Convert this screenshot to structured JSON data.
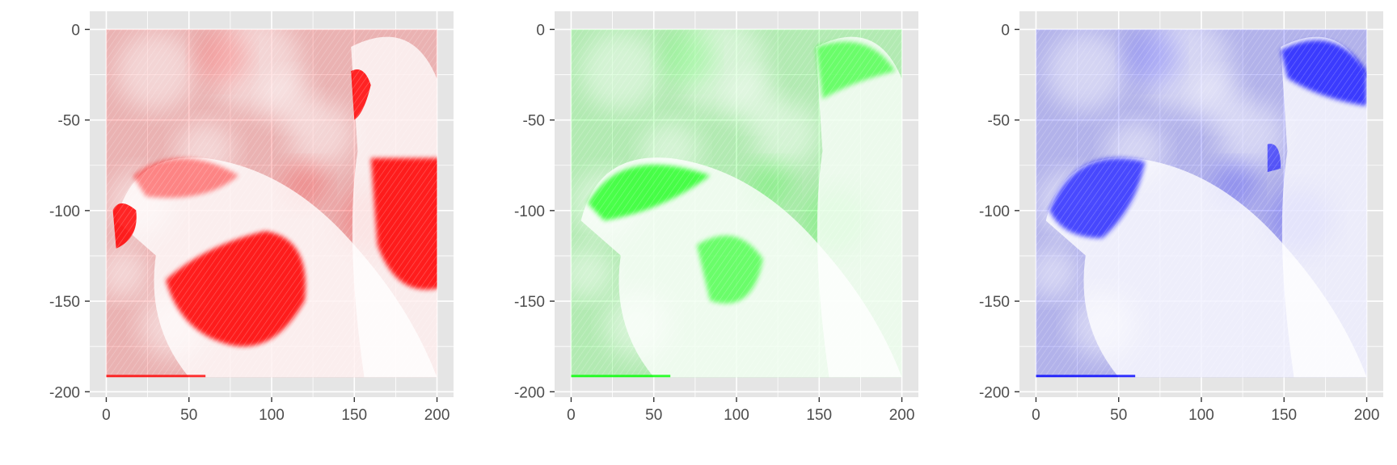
{
  "chart_data": [
    {
      "type": "heatmap",
      "channel": "red",
      "color": "#ff0000",
      "xlim": [
        -10,
        210
      ],
      "ylim": [
        -203,
        10
      ],
      "x_ticks": [
        0,
        50,
        100,
        150,
        200
      ],
      "y_ticks": [
        0,
        -50,
        -100,
        -150,
        -200
      ],
      "x_tick_labels": [
        "0",
        "50",
        "100",
        "150",
        "200"
      ],
      "y_tick_labels": [
        "0",
        "-50",
        "-100",
        "-150",
        "-200"
      ],
      "image_extent": {
        "x": [
          0,
          200
        ],
        "y": [
          -192,
          0
        ]
      },
      "grid": true
    },
    {
      "type": "heatmap",
      "channel": "green",
      "color": "#00ff00",
      "xlim": [
        -10,
        210
      ],
      "ylim": [
        -203,
        10
      ],
      "x_ticks": [
        0,
        50,
        100,
        150,
        200
      ],
      "y_ticks": [
        0,
        -50,
        -100,
        -150,
        -200
      ],
      "x_tick_labels": [
        "0",
        "50",
        "100",
        "150",
        "200"
      ],
      "y_tick_labels": [
        "0",
        "-50",
        "-100",
        "-150",
        "-200"
      ],
      "image_extent": {
        "x": [
          0,
          200
        ],
        "y": [
          -192,
          0
        ]
      },
      "grid": true
    },
    {
      "type": "heatmap",
      "channel": "blue",
      "color": "#0000ff",
      "xlim": [
        -10,
        210
      ],
      "ylim": [
        -203,
        10
      ],
      "x_ticks": [
        0,
        50,
        100,
        150,
        200
      ],
      "y_ticks": [
        0,
        -50,
        -100,
        -150,
        -200
      ],
      "x_tick_labels": [
        "0",
        "50",
        "100",
        "150",
        "200"
      ],
      "y_tick_labels": [
        "0",
        "-50",
        "-100",
        "-150",
        "-200"
      ],
      "image_extent": {
        "x": [
          0,
          200
        ],
        "y": [
          -192,
          0
        ]
      },
      "grid": true
    }
  ]
}
